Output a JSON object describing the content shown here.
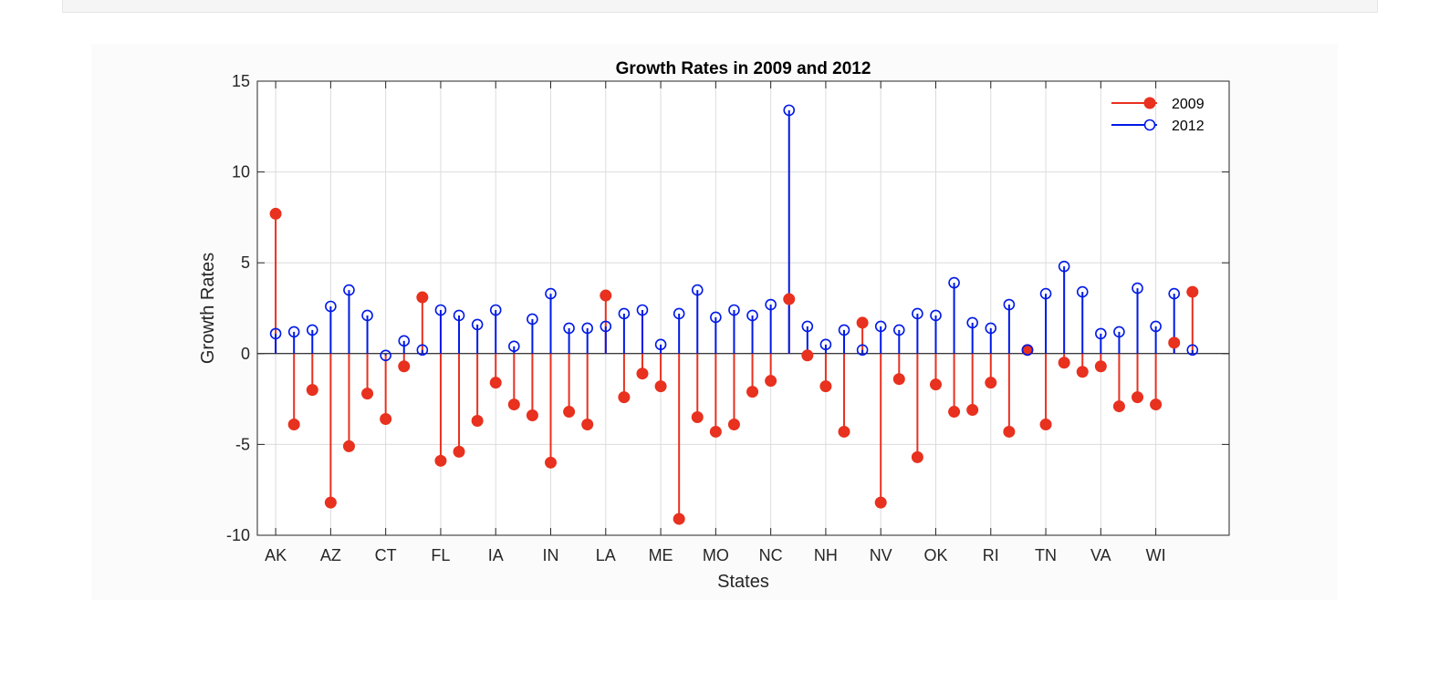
{
  "chart_data": {
    "type": "stem",
    "title": "Growth Rates in 2009 and 2012",
    "xlabel": "States",
    "ylabel": "Growth Rates",
    "ylim": [
      -10,
      15
    ],
    "yticks": [
      -10,
      -5,
      0,
      5,
      10,
      15
    ],
    "xtick_labels": [
      "AK",
      "AZ",
      "CT",
      "FL",
      "IA",
      "IN",
      "LA",
      "ME",
      "MO",
      "NC",
      "NH",
      "NV",
      "OK",
      "RI",
      "TN",
      "VA",
      "WI"
    ],
    "xtick_positions": [
      1,
      4,
      7,
      10,
      13,
      16,
      19,
      22,
      25,
      28,
      31,
      34,
      37,
      40,
      43,
      46,
      49
    ],
    "xlim": [
      0,
      53
    ],
    "grid": true,
    "legend_position": "top-right",
    "series": [
      {
        "name": "2009",
        "color": "#e8311f",
        "marker": "filled-circle",
        "x": [
          1,
          2,
          3,
          4,
          5,
          6,
          7,
          8,
          9,
          10,
          11,
          12,
          13,
          14,
          15,
          16,
          17,
          18,
          19,
          20,
          21,
          22,
          23,
          24,
          25,
          26,
          27,
          28,
          29,
          30,
          31,
          32,
          33,
          34,
          35,
          36,
          37,
          38,
          39,
          40,
          41,
          42,
          43,
          44,
          45,
          46,
          47,
          48,
          49,
          50,
          51
        ],
        "values": [
          7.7,
          -3.9,
          -2.0,
          -8.2,
          -5.1,
          -2.2,
          -3.6,
          -0.7,
          3.1,
          -5.9,
          -5.4,
          -3.7,
          -1.6,
          -2.8,
          -3.4,
          -6.0,
          -3.2,
          -3.9,
          3.2,
          -2.4,
          -1.1,
          -1.8,
          -9.1,
          -3.5,
          -4.3,
          -3.9,
          -2.1,
          -1.5,
          3.0,
          -0.1,
          -1.8,
          -4.3,
          1.7,
          -8.2,
          -1.4,
          -5.7,
          -1.7,
          -3.2,
          -3.1,
          -1.6,
          -4.3,
          0.2,
          -3.9,
          -0.5,
          -1.0,
          -0.7,
          -2.9,
          -2.4,
          -2.8,
          0.6,
          3.4
        ]
      },
      {
        "name": "2012",
        "color": "#0019e6",
        "marker": "open-circle",
        "x": [
          1,
          2,
          3,
          4,
          5,
          6,
          7,
          8,
          9,
          10,
          11,
          12,
          13,
          14,
          15,
          16,
          17,
          18,
          19,
          20,
          21,
          22,
          23,
          24,
          25,
          26,
          27,
          28,
          29,
          30,
          31,
          32,
          33,
          34,
          35,
          36,
          37,
          38,
          39,
          40,
          41,
          42,
          43,
          44,
          45,
          46,
          47,
          48,
          49,
          50,
          51
        ],
        "values": [
          1.1,
          1.2,
          1.3,
          2.6,
          3.5,
          2.1,
          -0.1,
          0.7,
          0.2,
          2.4,
          2.1,
          1.6,
          2.4,
          0.4,
          1.9,
          3.3,
          1.4,
          1.4,
          1.5,
          2.2,
          2.4,
          0.5,
          2.2,
          3.5,
          2.0,
          2.4,
          2.1,
          2.7,
          13.4,
          1.5,
          0.5,
          1.3,
          0.2,
          1.5,
          1.3,
          2.2,
          2.1,
          3.9,
          1.7,
          1.4,
          2.7,
          0.2,
          3.3,
          4.8,
          3.4,
          1.1,
          1.2,
          3.6,
          1.5,
          3.3,
          0.2
        ]
      }
    ]
  }
}
